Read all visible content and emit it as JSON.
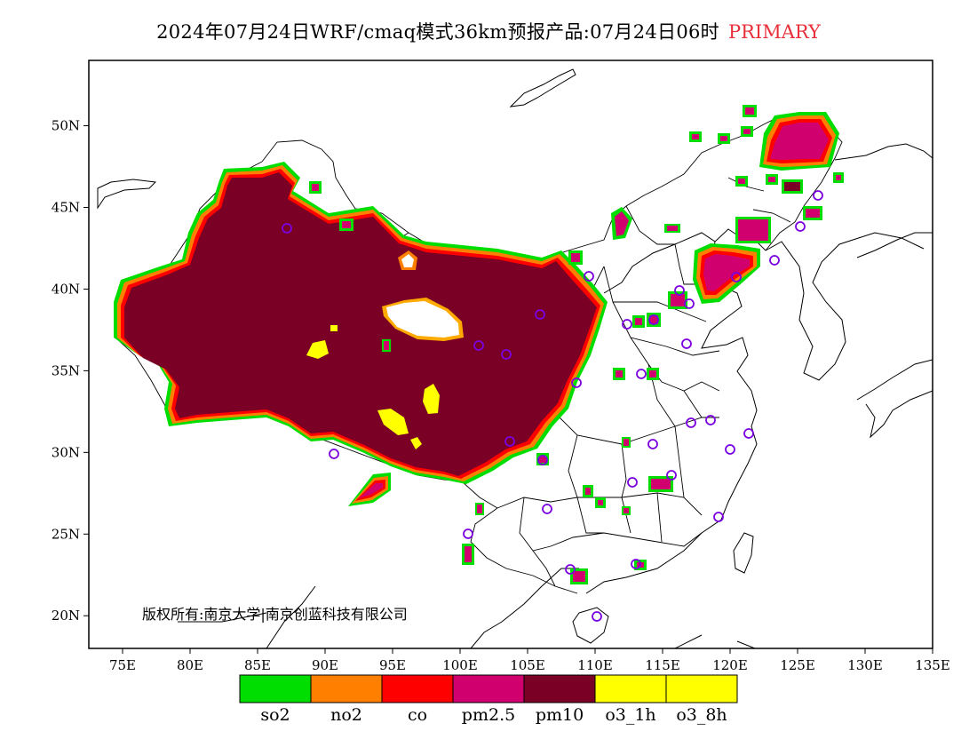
{
  "title": "2024年07月24日WRF/cmaq模式36km预报产品:07月24日06时",
  "primary_label": "PRIMARY",
  "colors": {
    "primary_label": "#e8303a",
    "so2": "#00dd00",
    "no2": "#ff8000",
    "co": "#ff0000",
    "pm25": "#d0006f",
    "pm10": "#7a0025",
    "o3_1h": "#ffff00",
    "o3_8h": "#ffff00",
    "station_marker": "#7a00e0",
    "boundary": "#000000"
  },
  "axes": {
    "longitude_labels": [
      "75E",
      "80E",
      "85E",
      "90E",
      "95E",
      "100E",
      "105E",
      "110E",
      "115E",
      "120E",
      "125E",
      "130E",
      "135E"
    ],
    "latitude_labels": [
      "20N",
      "25N",
      "30N",
      "35N",
      "40N",
      "45N",
      "50N"
    ],
    "lon_range": [
      72.5,
      135
    ],
    "lat_range": [
      18,
      54
    ]
  },
  "copyright": "版权所有:南京大学|南京创蓝科技有限公司",
  "legend": {
    "items": [
      {
        "label": "so2",
        "color": "#00dd00"
      },
      {
        "label": "no2",
        "color": "#ff8000"
      },
      {
        "label": "co",
        "color": "#ff0000"
      },
      {
        "label": "pm2.5",
        "color": "#d0006f"
      },
      {
        "label": "pm10",
        "color": "#7a0025"
      },
      {
        "label": "o3_1h",
        "color": "#ffff00"
      },
      {
        "label": "o3_8h",
        "color": "#ffff00"
      }
    ]
  }
}
